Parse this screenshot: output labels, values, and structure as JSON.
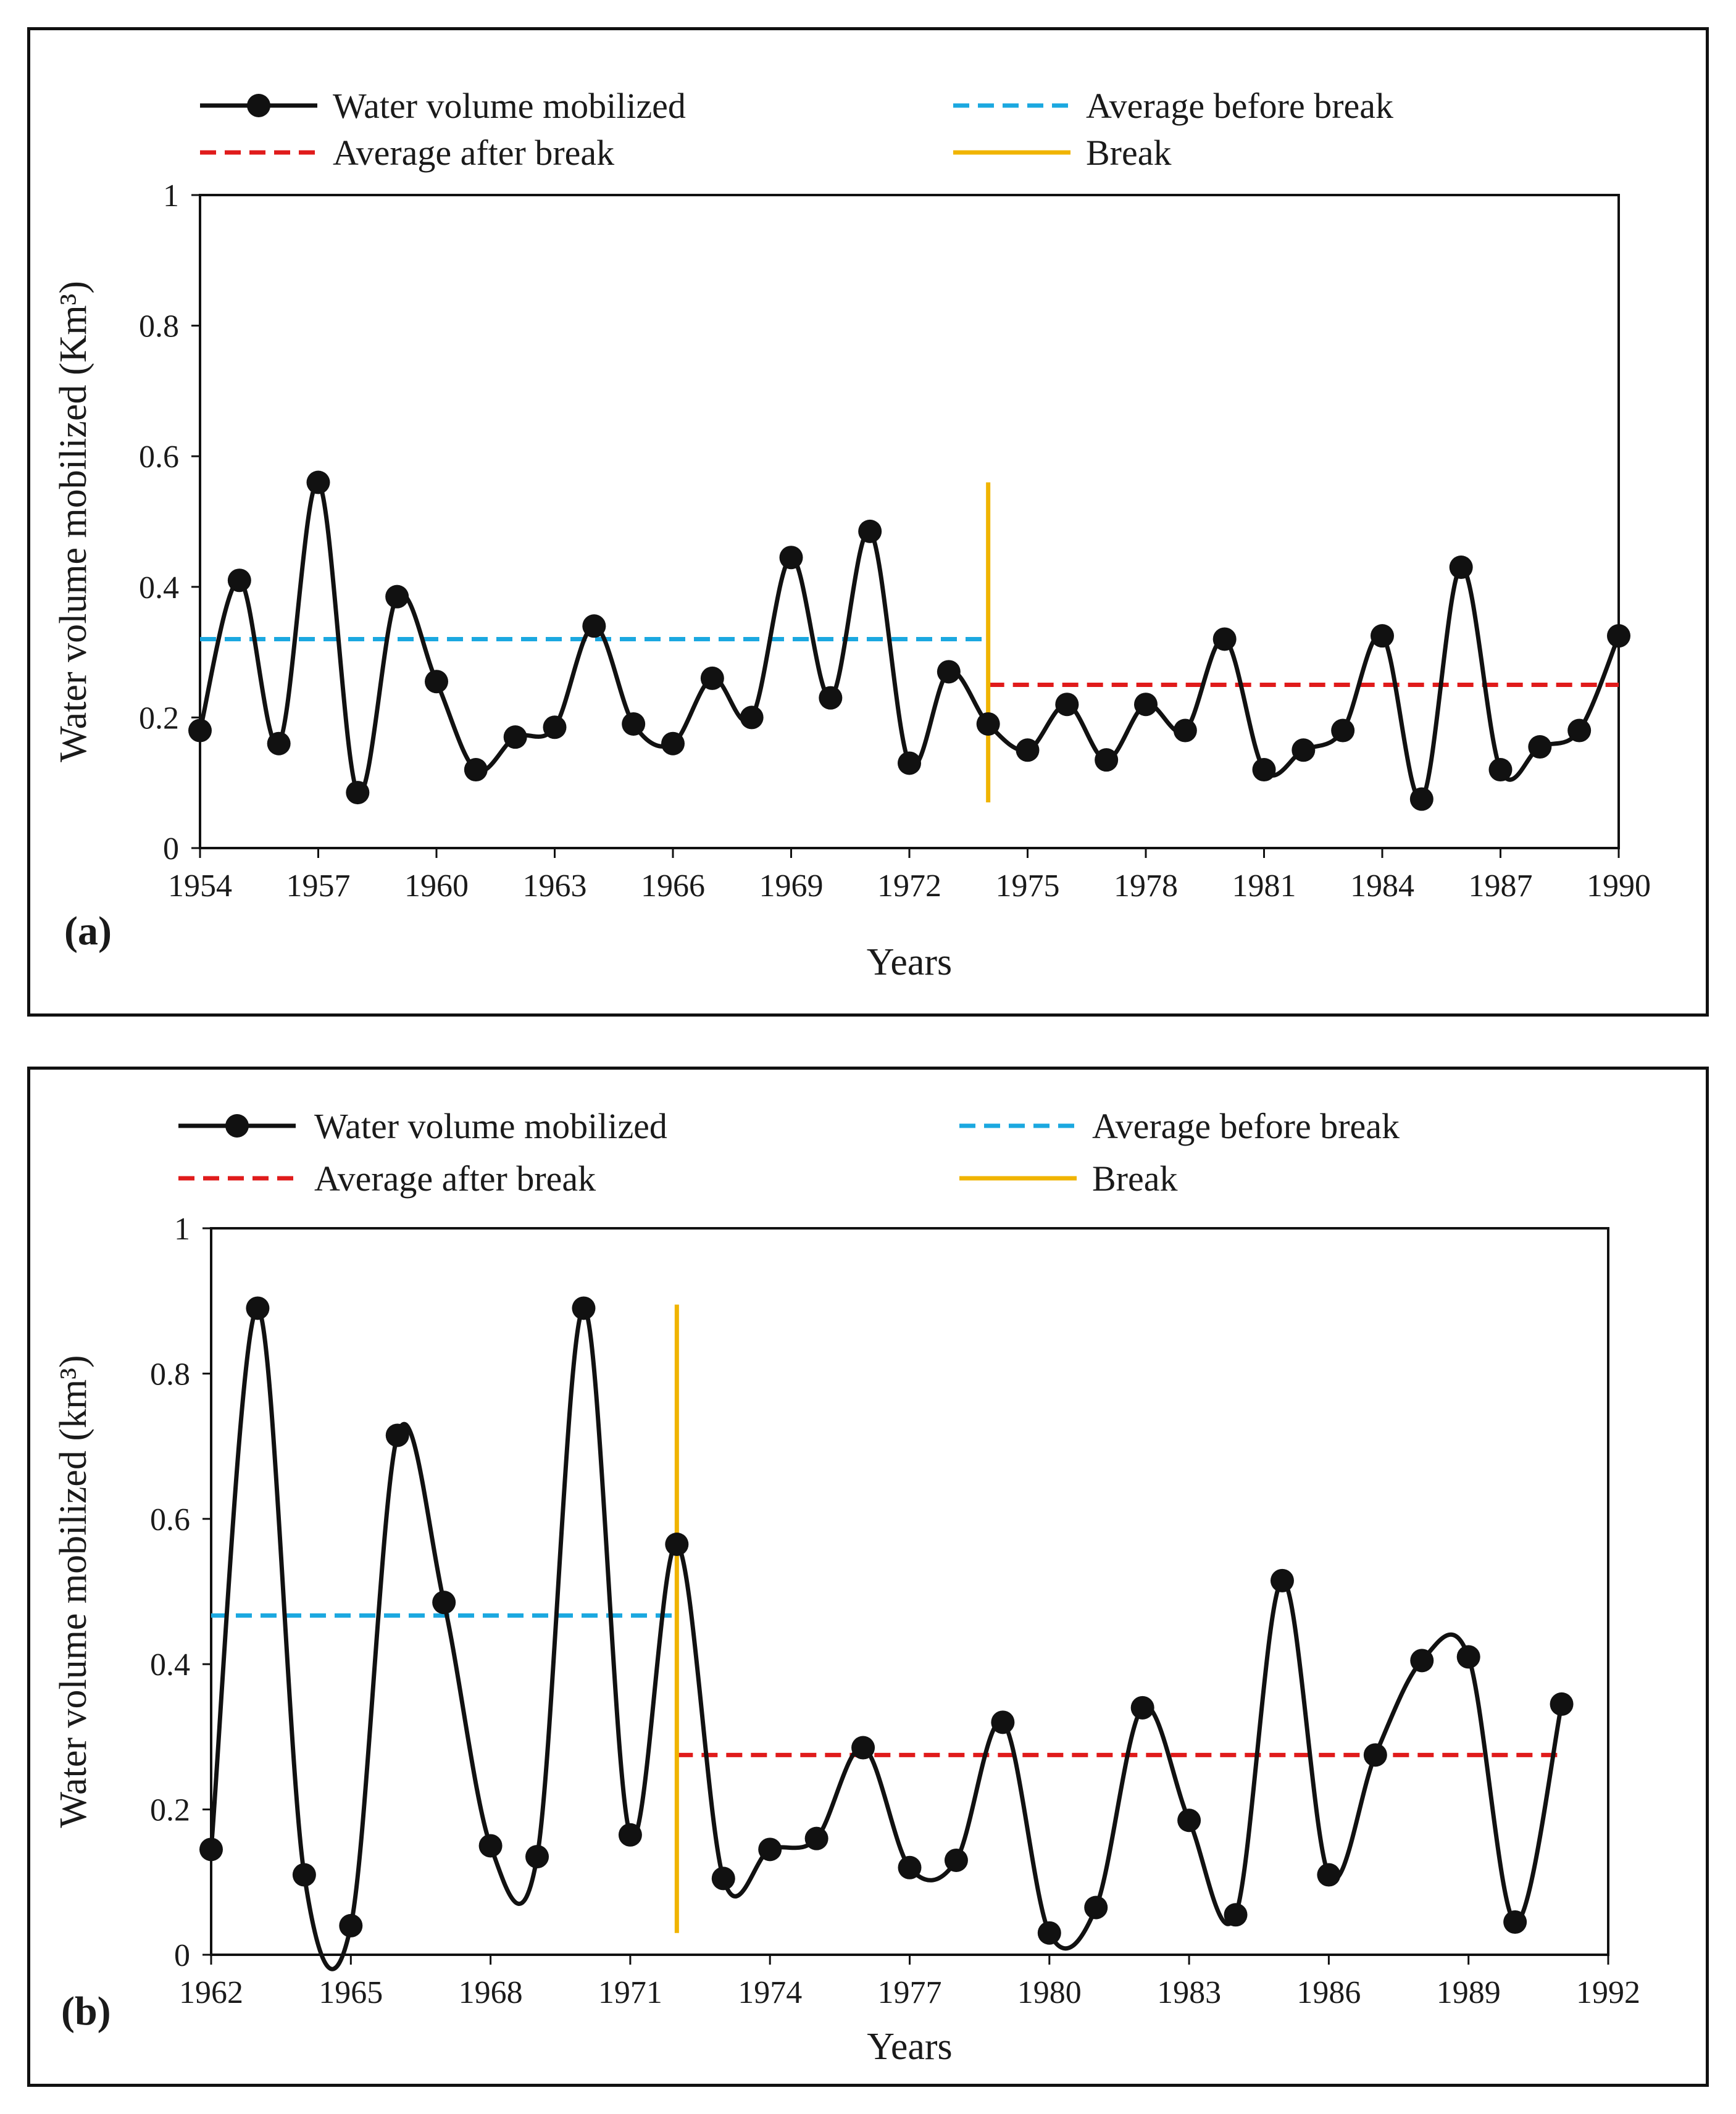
{
  "chart_data": [
    {
      "type": "line",
      "panel_label": "(a)",
      "xlabel": "Years",
      "ylabel": "Water volume mobilized (Km³)",
      "xlim": [
        1954,
        1990
      ],
      "ylim": [
        0,
        1
      ],
      "xticks": [
        "1954",
        "1957",
        "1960",
        "1963",
        "1966",
        "1969",
        "1972",
        "1975",
        "1978",
        "1981",
        "1984",
        "1987",
        "1990"
      ],
      "yticks": [
        "0",
        "0.2",
        "0.4",
        "0.6",
        "0.8",
        "1"
      ],
      "legend": {
        "series_label": "Water volume mobilized",
        "before_label": "Average before break",
        "after_label": "Average after break",
        "break_label": "Break"
      },
      "colors": {
        "series": "#111111",
        "before": "#1ba8e0",
        "after": "#e01b1b",
        "break": "#f0b400"
      },
      "x": [
        1954,
        1955,
        1956,
        1957,
        1958,
        1959,
        1960,
        1961,
        1962,
        1963,
        1964,
        1965,
        1966,
        1967,
        1968,
        1969,
        1970,
        1971,
        1972,
        1973,
        1974,
        1975,
        1976,
        1977,
        1978,
        1979,
        1980,
        1981,
        1982,
        1983,
        1984,
        1985,
        1986,
        1987,
        1988,
        1989,
        1990
      ],
      "values": [
        0.18,
        0.41,
        0.16,
        0.56,
        0.085,
        0.385,
        0.255,
        0.12,
        0.17,
        0.185,
        0.34,
        0.19,
        0.16,
        0.26,
        0.2,
        0.445,
        0.23,
        0.485,
        0.13,
        0.27,
        0.19,
        0.15,
        0.22,
        0.135,
        0.22,
        0.18,
        0.32,
        0.12,
        0.15,
        0.18,
        0.325,
        0.075,
        0.43,
        0.12,
        0.155,
        0.18,
        0.325
      ],
      "break_year": 1974,
      "break_range": [
        0.07,
        0.56
      ],
      "avg_before": 0.32,
      "avg_before_range": [
        1954,
        1974
      ],
      "avg_after": 0.25,
      "avg_after_range": [
        1974,
        1990
      ]
    },
    {
      "type": "line",
      "panel_label": "(b)",
      "xlabel": "Years",
      "ylabel": "Water volume mobilized (km³)",
      "xlim": [
        1962,
        1992
      ],
      "ylim": [
        0,
        1
      ],
      "xticks": [
        "1962",
        "1965",
        "1968",
        "1971",
        "1974",
        "1977",
        "1980",
        "1983",
        "1986",
        "1989",
        "1992"
      ],
      "yticks": [
        "0",
        "0.2",
        "0.4",
        "0.6",
        "0.8",
        "1"
      ],
      "legend": {
        "series_label": "Water volume mobilized",
        "before_label": "Average before break",
        "after_label": "Average after break",
        "break_label": "Break"
      },
      "colors": {
        "series": "#111111",
        "before": "#1ba8e0",
        "after": "#e01b1b",
        "break": "#f0b400"
      },
      "x": [
        1962,
        1963,
        1964,
        1965,
        1966,
        1967,
        1968,
        1969,
        1970,
        1971,
        1972,
        1973,
        1974,
        1975,
        1976,
        1977,
        1978,
        1979,
        1980,
        1981,
        1982,
        1983,
        1984,
        1985,
        1986,
        1987,
        1988,
        1989,
        1990,
        1991
      ],
      "values": [
        0.145,
        0.89,
        0.11,
        0.04,
        0.715,
        0.485,
        0.15,
        0.135,
        0.89,
        0.165,
        0.565,
        0.105,
        0.145,
        0.16,
        0.285,
        0.12,
        0.13,
        0.32,
        0.03,
        0.065,
        0.34,
        0.185,
        0.055,
        0.515,
        0.11,
        0.275,
        0.405,
        0.41,
        0.045,
        0.345
      ],
      "break_year": 1972,
      "break_range": [
        0.03,
        0.895
      ],
      "avg_before": 0.467,
      "avg_before_range": [
        1962,
        1972
      ],
      "avg_after": 0.275,
      "avg_after_range": [
        1972,
        1991
      ]
    }
  ]
}
